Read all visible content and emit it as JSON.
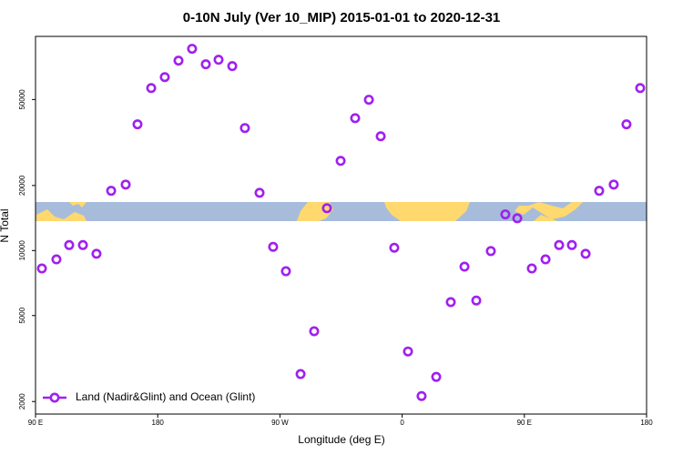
{
  "chart_data": {
    "type": "scatter",
    "title": "0-10N July (Ver 10_MIP)   2015-01-01 to 2020-12-31",
    "x_label": "Longitude (deg E)",
    "y_label": "N Total",
    "log_y": true,
    "legend": "bottom-left",
    "xlim": [
      90,
      540
    ],
    "xticks": [
      {
        "value": 90,
        "label": "90 E"
      },
      {
        "value": 180,
        "label": "180"
      },
      {
        "value": 270,
        "label": "90 W"
      },
      {
        "value": 360,
        "label": "0"
      },
      {
        "value": 450,
        "label": "90 E"
      },
      {
        "value": 540,
        "label": "180"
      }
    ],
    "ylim": [
      1750,
      98000
    ],
    "yticks": [
      2000,
      5000,
      10000,
      20000,
      50000
    ],
    "series": [
      {
        "name": "Land (Nadir&Glint) and Ocean (Glint)",
        "color": "#a020f0",
        "x": [
          94.7,
          105.4,
          114.8,
          124.9,
          134.9,
          145.7,
          156.4,
          165.1,
          175.2,
          185.2,
          195.3,
          205.3,
          215.4,
          224.8,
          234.9,
          244.2,
          255.0,
          265.0,
          274.4,
          285.2,
          295.2,
          304.6,
          314.7,
          325.4,
          335.5,
          344.2,
          354.2,
          364.3,
          374.3,
          385.1,
          395.8,
          405.9,
          414.6,
          425.3,
          436.0,
          444.8,
          455.5,
          465.6,
          475.6,
          485.0,
          495.1,
          505.1,
          515.8,
          525.2,
          535.3
        ],
        "values": [
          8260,
          9100,
          10600,
          10600,
          9660,
          18900,
          20200,
          38400,
          56500,
          63500,
          75700,
          85900,
          72800,
          76400,
          71400,
          36900,
          18500,
          10400,
          8020,
          2680,
          4230,
          15700,
          26000,
          41000,
          49900,
          33800,
          10300,
          3410,
          2120,
          2600,
          5770,
          8420,
          5870,
          9940,
          14700,
          14100,
          8260,
          9100,
          10600,
          10600,
          9660,
          18900,
          20200,
          38400,
          56500
        ]
      }
    ]
  }
}
